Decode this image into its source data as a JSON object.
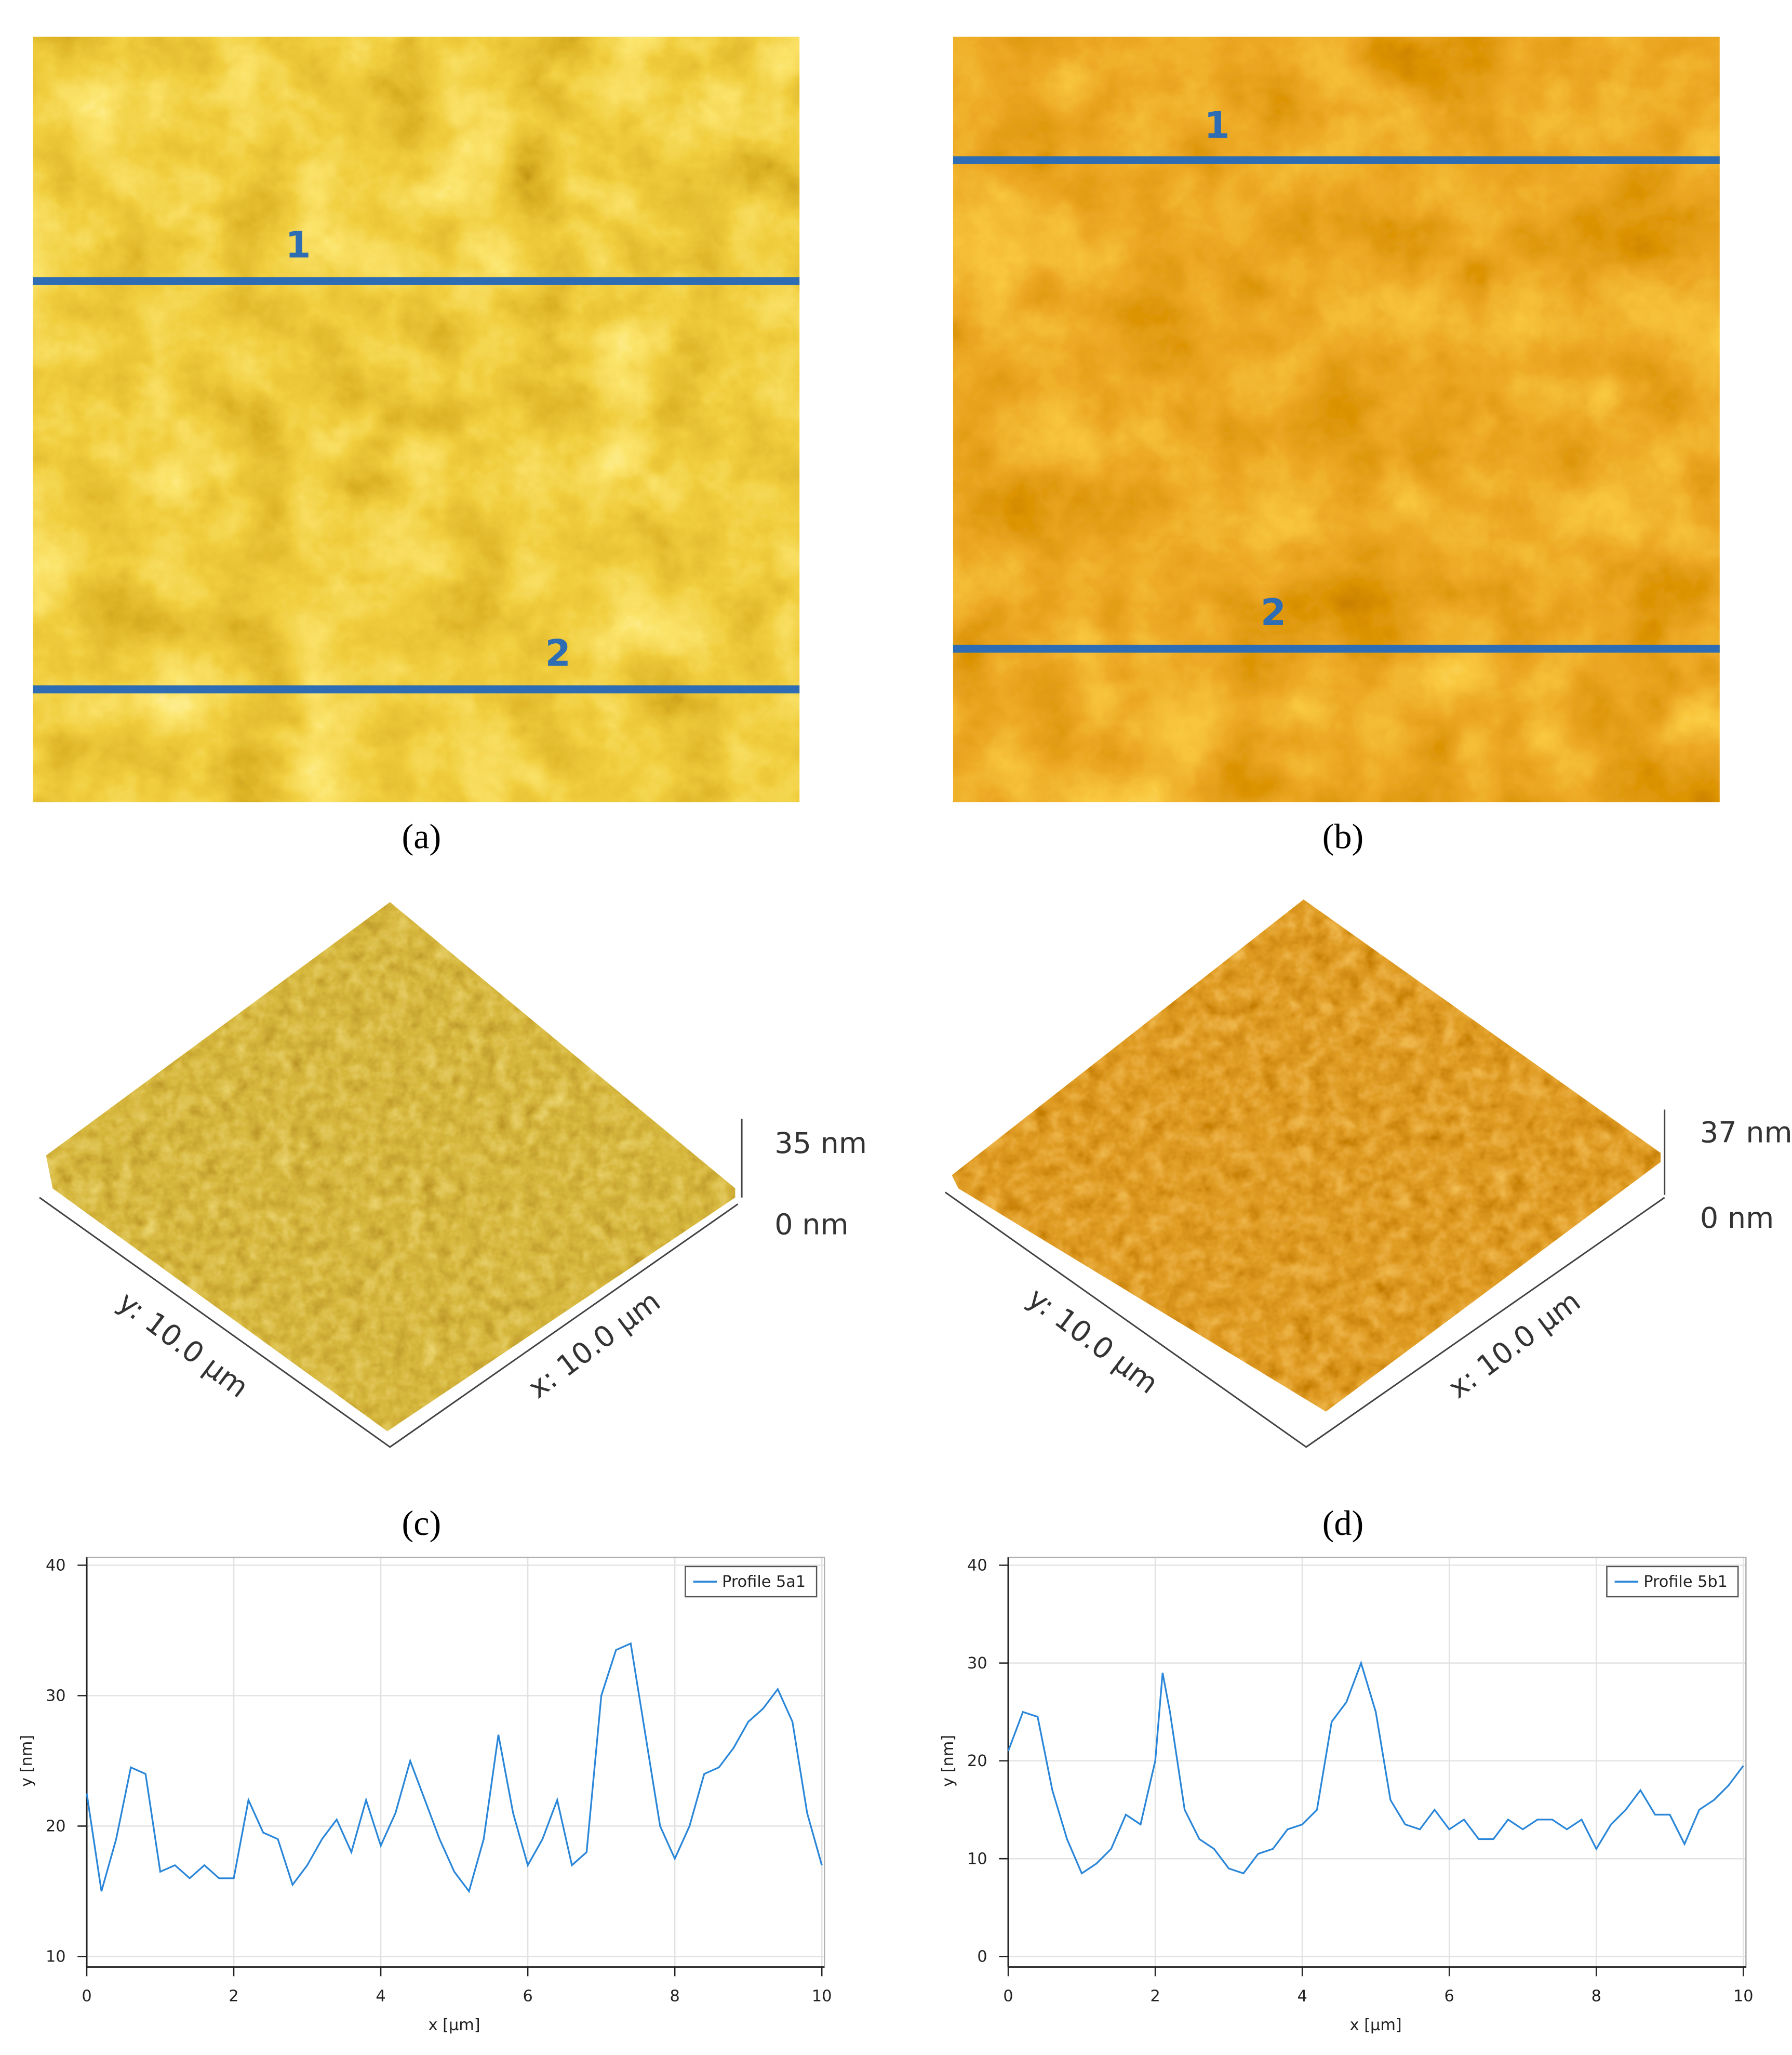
{
  "figure": {
    "panels": [
      {
        "label": "(a)",
        "profile_lines": [
          "1",
          "2"
        ]
      },
      {
        "label": "(b)",
        "profile_lines": [
          "1",
          "2"
        ]
      },
      {
        "label": "(c)",
        "z_max": "35 nm",
        "z_min": "0 nm",
        "y_axis": "y: 10.0 µm",
        "x_axis": "x: 10.0 µm"
      },
      {
        "label": "(d)",
        "z_max": "37 nm",
        "z_min": "0 nm",
        "y_axis": "y: 10.0 µm",
        "x_axis": "x: 10.0 µm"
      }
    ]
  },
  "chart_data": [
    {
      "type": "line",
      "xlabel": "x [µm]",
      "ylabel": "y [nm]",
      "grid": true,
      "legend": "upper right",
      "xlim": [
        0,
        10
      ],
      "xticks": [
        0,
        2,
        4,
        6,
        8,
        10
      ],
      "ylim": [
        10,
        40
      ],
      "yticks": [
        10,
        20,
        30,
        40
      ],
      "x": [
        0,
        0.2,
        0.4,
        0.6,
        0.8,
        1.0,
        1.2,
        1.4,
        1.6,
        1.8,
        2.0,
        2.2,
        2.4,
        2.6,
        2.8,
        3.0,
        3.2,
        3.4,
        3.6,
        3.8,
        4.0,
        4.2,
        4.4,
        4.6,
        4.8,
        5.0,
        5.2,
        5.4,
        5.6,
        5.8,
        6.0,
        6.2,
        6.4,
        6.6,
        6.8,
        7.0,
        7.2,
        7.4,
        7.6,
        7.8,
        8.0,
        8.2,
        8.4,
        8.6,
        8.8,
        9.0,
        9.2,
        9.4,
        9.6,
        9.8,
        10.0
      ],
      "series": [
        {
          "name": "Profile 5a1",
          "color": "#2a86d8",
          "values": [
            22.5,
            15,
            19,
            24.5,
            24,
            16.5,
            17,
            16,
            17,
            16,
            16,
            22,
            19.5,
            19,
            15.5,
            17,
            19,
            20.5,
            18,
            22,
            18.5,
            21,
            25,
            22,
            19,
            16.5,
            15,
            19,
            27,
            21,
            17,
            19,
            22,
            17,
            18,
            30,
            33.5,
            34,
            27,
            20,
            17.5,
            20,
            24,
            24.5,
            26,
            28,
            29,
            30.5,
            28,
            21,
            17
          ]
        }
      ]
    },
    {
      "type": "line",
      "xlabel": "x [µm]",
      "ylabel": "y [nm]",
      "grid": true,
      "legend": "upper right",
      "xlim": [
        0,
        10
      ],
      "xticks": [
        0,
        2,
        4,
        6,
        8,
        10
      ],
      "ylim": [
        0,
        40
      ],
      "yticks": [
        0,
        10,
        20,
        30,
        40
      ],
      "x": [
        0,
        0.2,
        0.4,
        0.6,
        0.8,
        1.0,
        1.2,
        1.4,
        1.6,
        1.8,
        2.0,
        2.1,
        2.2,
        2.4,
        2.6,
        2.8,
        3.0,
        3.2,
        3.4,
        3.6,
        3.8,
        4.0,
        4.2,
        4.4,
        4.6,
        4.8,
        5.0,
        5.2,
        5.4,
        5.6,
        5.8,
        6.0,
        6.2,
        6.4,
        6.6,
        6.8,
        7.0,
        7.2,
        7.4,
        7.6,
        7.8,
        8.0,
        8.2,
        8.4,
        8.6,
        8.8,
        9.0,
        9.2,
        9.4,
        9.6,
        9.8,
        10.0
      ],
      "series": [
        {
          "name": "Profile 5b1",
          "color": "#2a86d8",
          "values": [
            21,
            25,
            24.5,
            17,
            12,
            8.5,
            9.5,
            11,
            14.5,
            13.5,
            20,
            29,
            25,
            15,
            12,
            11,
            9,
            8.5,
            10.5,
            11,
            13,
            13.5,
            15,
            24,
            26,
            30,
            25,
            16,
            13.5,
            13,
            15,
            13,
            14,
            12,
            12,
            14,
            13,
            14,
            14,
            13,
            14,
            11,
            13.5,
            15,
            17,
            14.5,
            14.5,
            11.5,
            15,
            16,
            17.5,
            19.5
          ]
        }
      ]
    }
  ]
}
